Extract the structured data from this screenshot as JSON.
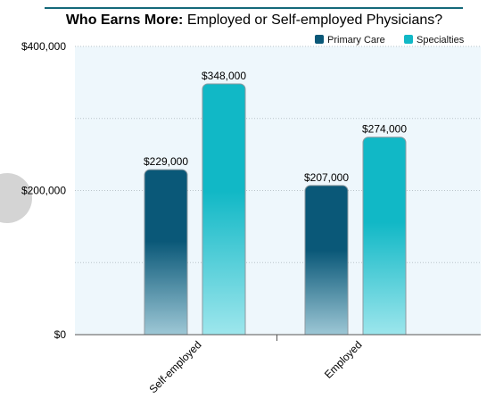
{
  "chart_data": {
    "type": "bar",
    "title_bold": "Who Earns More:",
    "title_rest": " Employed or Self-employed Physicians?",
    "categories": [
      "Self-employed",
      "Employed"
    ],
    "series": [
      {
        "name": "Primary Care",
        "values": [
          229000,
          207000
        ],
        "color": "#0a5878",
        "fade": "#a6cedb"
      },
      {
        "name": "Specialties",
        "values": [
          348000,
          274000
        ],
        "color": "#11b8c6",
        "fade": "#a3e8ee"
      }
    ],
    "value_labels": [
      [
        "$229,000",
        "$207,000"
      ],
      [
        "$348,000",
        "$274,000"
      ]
    ],
    "ylim": [
      0,
      400000
    ],
    "y_ticks": [
      {
        "value": 0,
        "label": "$0"
      },
      {
        "value": 200000,
        "label": "$200,000"
      },
      {
        "value": 400000,
        "label": "$400,000"
      }
    ],
    "y_gridlines": [
      100000,
      200000,
      300000,
      400000
    ],
    "legend_position": "top-right",
    "plot_background": "#eef7fc",
    "title_rule_color": "#15697a"
  }
}
